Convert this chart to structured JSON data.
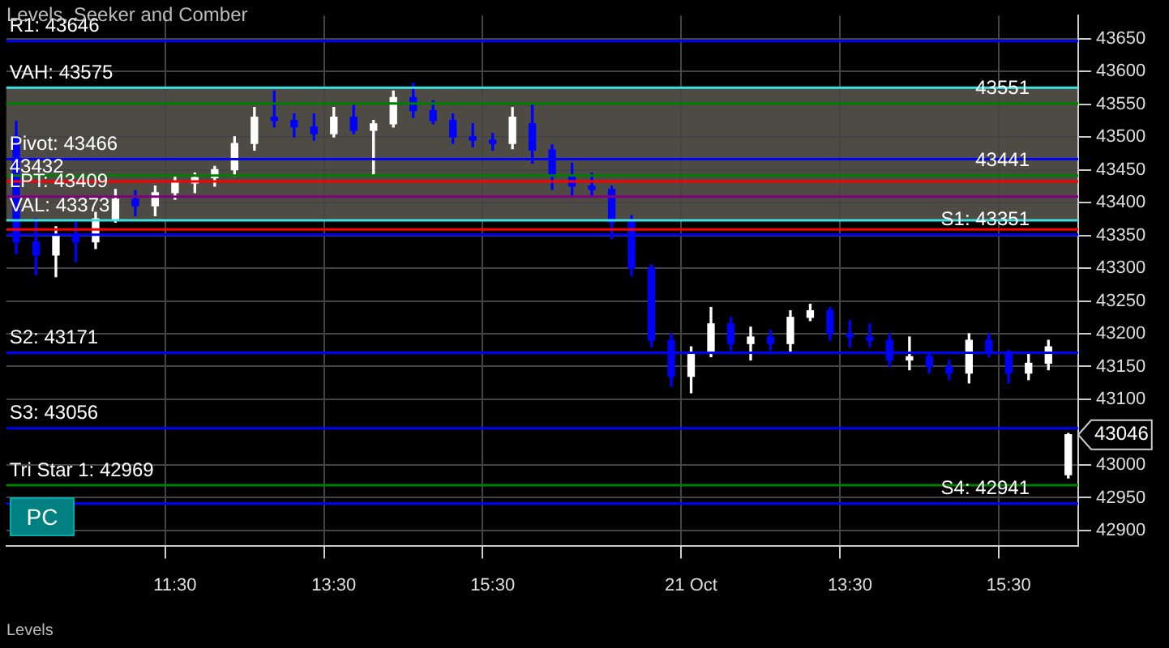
{
  "chart_data": {
    "type": "candlestick",
    "title": "Levels, Seeker and Comber",
    "categories": [
      null,
      null,
      null,
      null,
      null,
      null,
      null,
      null,
      "11:30",
      null,
      null,
      null,
      null,
      null,
      null,
      null,
      "13:30",
      null,
      null,
      null,
      null,
      null,
      null,
      null,
      "15:30",
      null,
      null,
      null,
      null,
      null,
      null,
      null,
      null,
      null,
      "21 Oct",
      null,
      null,
      null,
      null,
      null,
      null,
      null,
      "13:30",
      null,
      null,
      null,
      null,
      null,
      null,
      null,
      "15:30",
      null,
      null,
      null
    ],
    "ohlc": [
      [
        43501,
        43524,
        43322,
        43340
      ],
      [
        43340,
        43375,
        43290,
        43320
      ],
      [
        43320,
        43363,
        43287,
        43350
      ],
      [
        43350,
        43370,
        43310,
        43340
      ],
      [
        43340,
        43385,
        43330,
        43375
      ],
      [
        43375,
        43420,
        43370,
        43405
      ],
      [
        43405,
        43418,
        43380,
        43395
      ],
      [
        43395,
        43425,
        43380,
        43415
      ],
      [
        43415,
        43440,
        43405,
        43430
      ],
      [
        43430,
        43445,
        43415,
        43438
      ],
      [
        43438,
        43455,
        43425,
        43450
      ],
      [
        43450,
        43500,
        43440,
        43490
      ],
      [
        43490,
        43545,
        43480,
        43530
      ],
      [
        43530,
        43570,
        43515,
        43525
      ],
      [
        43525,
        43535,
        43500,
        43515
      ],
      [
        43515,
        43535,
        43495,
        43505
      ],
      [
        43505,
        43545,
        43500,
        43530
      ],
      [
        43530,
        43548,
        43505,
        43510
      ],
      [
        43510,
        43525,
        43443,
        43520
      ],
      [
        43520,
        43570,
        43515,
        43560
      ],
      [
        43560,
        43582,
        43530,
        43540
      ],
      [
        43540,
        43555,
        43520,
        43525
      ],
      [
        43525,
        43535,
        43490,
        43500
      ],
      [
        43500,
        43520,
        43485,
        43495
      ],
      [
        43495,
        43505,
        43480,
        43490
      ],
      [
        43490,
        43545,
        43482,
        43530
      ],
      [
        43520,
        43551,
        43460,
        43480
      ],
      [
        43480,
        43488,
        43420,
        43440
      ],
      [
        43440,
        43460,
        43410,
        43425
      ],
      [
        43425,
        43445,
        43410,
        43420
      ],
      [
        43420,
        43425,
        43345,
        43370
      ],
      [
        43370,
        43380,
        43288,
        43300
      ],
      [
        43300,
        43305,
        43180,
        43190
      ],
      [
        43190,
        43200,
        43120,
        43135
      ],
      [
        43135,
        43180,
        43110,
        43170
      ],
      [
        43170,
        43240,
        43165,
        43215
      ],
      [
        43215,
        43225,
        43175,
        43185
      ],
      [
        43185,
        43210,
        43160,
        43195
      ],
      [
        43195,
        43205,
        43175,
        43185
      ],
      [
        43185,
        43235,
        43170,
        43225
      ],
      [
        43225,
        43245,
        43220,
        43235
      ],
      [
        43235,
        43240,
        43190,
        43200
      ],
      [
        43200,
        43220,
        43180,
        43195
      ],
      [
        43195,
        43215,
        43180,
        43190
      ],
      [
        43190,
        43200,
        43150,
        43160
      ],
      [
        43160,
        43195,
        43145,
        43165
      ],
      [
        43165,
        43170,
        43140,
        43150
      ],
      [
        43150,
        43160,
        43130,
        43140
      ],
      [
        43140,
        43200,
        43125,
        43190
      ],
      [
        43190,
        43200,
        43165,
        43170
      ],
      [
        43170,
        43175,
        43125,
        43140
      ],
      [
        43140,
        43170,
        43130,
        43155
      ],
      [
        43155,
        43190,
        43145,
        43180
      ],
      [
        42985,
        43048,
        42980,
        43046
      ]
    ],
    "colors": [
      "#0000ff",
      "#0000ff",
      "#ffffff",
      "#0000ff",
      "#ffffff",
      "#ffffff",
      "#0000ff",
      "#ffffff",
      "#ffffff",
      "#ffffff",
      "#ffffff",
      "#ffffff",
      "#ffffff",
      "#0000ff",
      "#0000ff",
      "#0000ff",
      "#ffffff",
      "#0000ff",
      "#ffffff",
      "#ffffff",
      "#0000ff",
      "#0000ff",
      "#0000ff",
      "#0000ff",
      "#0000ff",
      "#ffffff",
      "#0000ff",
      "#0000ff",
      "#0000ff",
      "#0000ff",
      "#0000ff",
      "#0000ff",
      "#0000ff",
      "#0000ff",
      "#ffffff",
      "#ffffff",
      "#0000ff",
      "#ffffff",
      "#0000ff",
      "#ffffff",
      "#ffffff",
      "#0000ff",
      "#0000ff",
      "#0000ff",
      "#0000ff",
      "#ffffff",
      "#0000ff",
      "#0000ff",
      "#ffffff",
      "#0000ff",
      "#0000ff",
      "#ffffff",
      "#ffffff",
      "#ffffff"
    ],
    "ylim": [
      42877,
      43685
    ],
    "yticks": [
      42900,
      42950,
      43000,
      43100,
      43150,
      43200,
      43250,
      43300,
      43350,
      43400,
      43450,
      43500,
      43550,
      43600,
      43650
    ],
    "grid": true,
    "legend": false,
    "bands": [
      {
        "axis": "y",
        "from": 43373,
        "to": 43575,
        "color": "#4d4b44"
      }
    ],
    "ref_lines": [
      {
        "axis": "y",
        "value": 43646,
        "label": "R1: 43646",
        "color": "#0000ff"
      },
      {
        "axis": "y",
        "value": 43575,
        "label": "VAH: 43575",
        "color": "#40e0e0"
      },
      {
        "axis": "y",
        "value": 43551,
        "label": "43551",
        "color": "#008000"
      },
      {
        "axis": "y",
        "value": 43466,
        "label": "Pivot: 43466",
        "color": "#0000ff"
      },
      {
        "axis": "y",
        "value": 43441,
        "label": "43441",
        "color": "#008000"
      },
      {
        "axis": "y",
        "value": 43432,
        "label": "43432",
        "color": "#ff0000"
      },
      {
        "axis": "y",
        "value": 43409,
        "label": "LPT: 43409",
        "color": "#800080"
      },
      {
        "axis": "y",
        "value": 43373,
        "label": "VAL: 43373",
        "color": "#40e0e0"
      },
      {
        "axis": "y",
        "value": 43359,
        "label": null,
        "color": "#ff0000"
      },
      {
        "axis": "y",
        "value": 43351,
        "label": "S1: 43351",
        "color": "#0000ff"
      },
      {
        "axis": "y",
        "value": 43171,
        "label": "S2: 43171",
        "color": "#0000ff"
      },
      {
        "axis": "y",
        "value": 43056,
        "label": "S3: 43056",
        "color": "#0000ff"
      },
      {
        "axis": "y",
        "value": 42969,
        "label": "Tri Star 1: 42969",
        "color": "#008000"
      },
      {
        "axis": "y",
        "value": 42941,
        "label": "S4: 42941",
        "color": "#0000ff"
      }
    ],
    "annotations": [
      "Levels",
      "PC",
      "43046"
    ]
  }
}
